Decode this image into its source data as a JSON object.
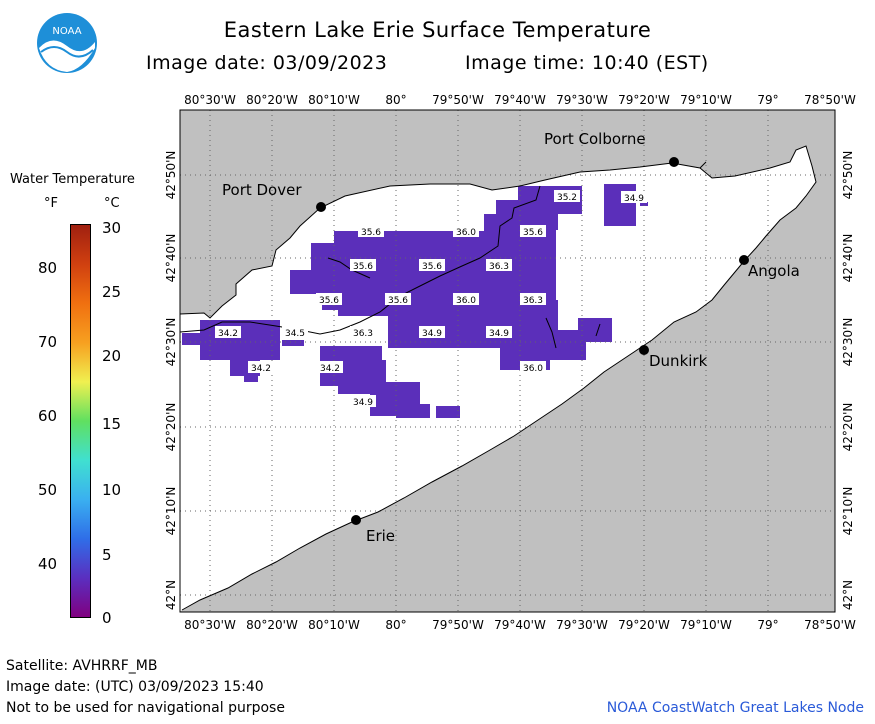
{
  "header": {
    "title": "Eastern Lake Erie Surface Temperature",
    "image_date": "Image date: 03/09/2023",
    "image_time": "Image time: 10:40 (EST)",
    "logo_text": "NOAA"
  },
  "legend": {
    "title": "Water Temperature",
    "unit_f": "°F",
    "unit_c": "°C",
    "ticks_f": [
      "80",
      "70",
      "60",
      "50",
      "40"
    ],
    "ticks_c": [
      "30",
      "25",
      "20",
      "15",
      "10",
      "5",
      "0"
    ],
    "colors": [
      "#800080",
      "#5a2fc0",
      "#2f6ee8",
      "#3ab0f0",
      "#40e0d0",
      "#60e060",
      "#f0f050",
      "#f7a020",
      "#f07010",
      "#d04010",
      "#a02010"
    ]
  },
  "map": {
    "lon_labels": [
      "80°30'W",
      "80°20'W",
      "80°10'W",
      "80°",
      "79°50'W",
      "79°40'W",
      "79°30'W",
      "79°20'W",
      "79°10'W",
      "79°",
      "78°50'W"
    ],
    "lat_labels": [
      "42°50'N",
      "42°40'N",
      "42°30'N",
      "42°20'N",
      "42°10'N",
      "42°N"
    ],
    "places": [
      {
        "name": "Port Colborne"
      },
      {
        "name": "Port Dover"
      },
      {
        "name": "Angola"
      },
      {
        "name": "Dunkirk"
      },
      {
        "name": "Erie"
      }
    ],
    "temperature_labels": [
      "35.2",
      "34.9",
      "35.6",
      "36.0",
      "35.6",
      "35.6",
      "35.6",
      "36.3",
      "35.6",
      "35.6",
      "36.0",
      "36.3",
      "34.2",
      "34.5",
      "36.3",
      "34.9",
      "34.9",
      "34.2",
      "34.2",
      "36.0",
      "34.9"
    ]
  },
  "footer": {
    "satellite": "Satellite: AVHRRF_MB",
    "utc_date": "Image date: (UTC) 03/09/2023  15:40",
    "disclaimer": "Not to be used for navigational purpose",
    "credit": "NOAA CoastWatch Great Lakes Node"
  }
}
